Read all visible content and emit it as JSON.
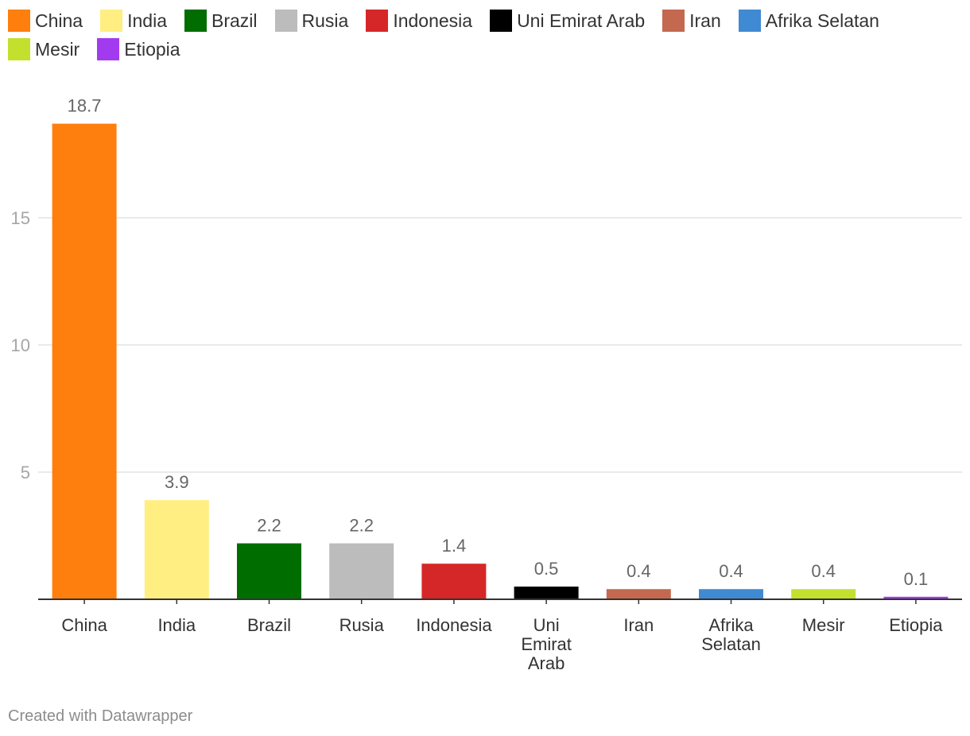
{
  "chart_data": {
    "type": "bar",
    "categories": [
      "China",
      "India",
      "Brazil",
      "Rusia",
      "Indonesia",
      "Uni Emirat Arab",
      "Iran",
      "Afrika Selatan",
      "Mesir",
      "Etiopia"
    ],
    "category_label_lines": [
      [
        "China"
      ],
      [
        "India"
      ],
      [
        "Brazil"
      ],
      [
        "Rusia"
      ],
      [
        "Indonesia"
      ],
      [
        "Uni",
        "Emirat",
        "Arab"
      ],
      [
        "Iran"
      ],
      [
        "Afrika",
        "Selatan"
      ],
      [
        "Mesir"
      ],
      [
        "Etiopia"
      ]
    ],
    "values": [
      18.7,
      3.9,
      2.2,
      2.2,
      1.4,
      0.5,
      0.4,
      0.4,
      0.4,
      0.1
    ],
    "value_labels": [
      "18.7",
      "3.9",
      "2.2",
      "2.2",
      "1.4",
      "0.5",
      "0.4",
      "0.4",
      "0.4",
      "0.1"
    ],
    "colors": [
      "#ff7f0e",
      "#ffee82",
      "#006d00",
      "#bcbcbc",
      "#d62728",
      "#000000",
      "#c4694f",
      "#3f8ad2",
      "#c4e02e",
      "#a23bf0"
    ],
    "yticks": [
      5,
      10,
      15
    ],
    "ylim": [
      0,
      19.5
    ],
    "grid": true,
    "legend_position": "top-left",
    "title": "",
    "xlabel": "",
    "ylabel": ""
  },
  "legend": {
    "rows": [
      [
        {
          "label": "China",
          "color": "#ff7f0e"
        },
        {
          "label": "India",
          "color": "#ffee82"
        },
        {
          "label": "Brazil",
          "color": "#006d00"
        },
        {
          "label": "Rusia",
          "color": "#bcbcbc"
        },
        {
          "label": "Indonesia",
          "color": "#d62728"
        },
        {
          "label": "Uni Emirat Arab",
          "color": "#000000"
        },
        {
          "label": "Iran",
          "color": "#c4694f"
        },
        {
          "label": "Afrika Selatan",
          "color": "#3f8ad2"
        }
      ],
      [
        {
          "label": "Mesir",
          "color": "#c4e02e"
        },
        {
          "label": "Etiopia",
          "color": "#a23bf0"
        }
      ]
    ]
  },
  "footer": {
    "credit": "Created with Datawrapper"
  }
}
